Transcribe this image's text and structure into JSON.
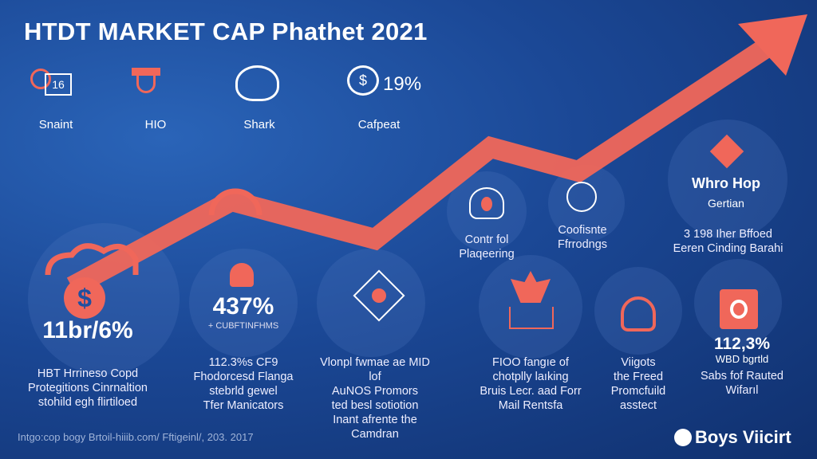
{
  "title": "HTDT MARKET CAP Phathet 2021",
  "top_icons": [
    {
      "icon": "gear-chart-icon",
      "value": "16",
      "label": "Snaint"
    },
    {
      "icon": "shield-icon",
      "label": "HIO"
    },
    {
      "icon": "helmet-icon",
      "label": "Shark"
    },
    {
      "icon": "speech-dollar-icon",
      "value": "$ 19%",
      "label": "Cafpeat"
    }
  ],
  "mid_items": [
    {
      "icon": "flame-bell-icon",
      "label": "Contr fol\nPlaqeering"
    },
    {
      "icon": "tree-globe-icon",
      "label": "Coofisnte\nFfrrodngs"
    },
    {
      "icon": "diamond-icon",
      "heading": "Whro Hop",
      "sub": "Gertian",
      "label": "3 198 Iher Bffoed\nEeren Cinding Barahi"
    }
  ],
  "bottom_items": [
    {
      "icon": "dollar-icon",
      "value": "11br/6%",
      "caption": "HBT Hrrineso Copd\nProtegitions Cinrnaltion\nstohild egh flirtiloed"
    },
    {
      "icon": "person-icon",
      "value": "437%",
      "sub": "+ CUBFTINFHMS",
      "caption": "112.3%s CF9\nFhodorcesd Flanga\nstebrld gewel\nTfer Manicators"
    },
    {
      "icon": "diamond-person-icon",
      "caption": "Vlonpl fwmae ae MID lof\nAuNOS Promors\nted besl sotiotion\nInant afrente the\nCamdran"
    },
    {
      "icon": "leaf-laptop-icon",
      "caption": "FIOO fangıe of\nchotplly laıking\nBruis Lecr. aad Forr\nMail Rentsfa"
    },
    {
      "icon": "fingerprint-icon",
      "caption": "Viigots\nthe Freed\nPromcfuild\nasstect"
    },
    {
      "icon": "target-card-icon",
      "value": "112,3%",
      "sub": "WBD bgrtld",
      "caption": "Sabs fof Rauted\nWifarıl"
    }
  ],
  "footer": "Intgo:cop bogy Brtoil-hiiib.com/ Fftigeinl/, 203. 2017",
  "logo": "Boys Viicirt",
  "colors": {
    "accent": "#f0675a",
    "bg": "#1b4896"
  }
}
